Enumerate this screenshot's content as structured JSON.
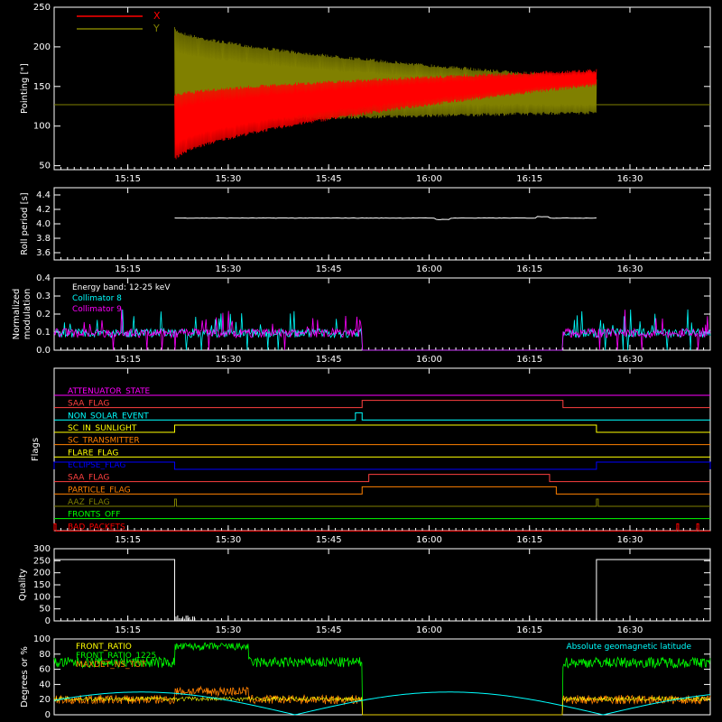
{
  "time_ticks": [
    "15:15",
    "15:30",
    "15:45",
    "16:00",
    "16:15",
    "16:30"
  ],
  "colors": {
    "axis": "#ffffff",
    "x_series": "#ff0000",
    "y_series": "#808000",
    "collimator8": "#00ffff",
    "collimator9": "#ff00ff",
    "front_ratio": "#ffff00",
    "front_ratio_1225": "#00ff00",
    "maxdet": "#ff8000",
    "geomag": "#00ffff"
  },
  "chart_data": [
    {
      "id": "pointing",
      "type": "line",
      "ylabel": "Pointing [\"]",
      "ylim": [
        45,
        250
      ],
      "yticks": [
        "50",
        "100",
        "150",
        "200",
        "250"
      ],
      "x_range": [
        "15:04",
        "16:42"
      ],
      "series": [
        {
          "name": "X",
          "color": "#ff0000",
          "baseline": 127,
          "active_window": [
            "15:22",
            "16:25"
          ],
          "envelope_low_start": 55,
          "envelope_high_start": 140,
          "envelope_low_end": 150,
          "envelope_high_end": 172
        },
        {
          "name": "Y",
          "color": "#808000",
          "baseline": 127,
          "active_window": [
            "15:22",
            "16:25"
          ],
          "envelope_low_start": 100,
          "envelope_high_start": 225,
          "envelope_low_end": 115,
          "envelope_high_end": 162
        }
      ]
    },
    {
      "id": "roll",
      "type": "line",
      "ylabel": "Roll period [s]",
      "ylim": [
        3.5,
        4.5
      ],
      "yticks": [
        "3.6",
        "3.8",
        "4.0",
        "4.2",
        "4.4"
      ],
      "series": [
        {
          "name": "",
          "value": 4.08
        }
      ]
    },
    {
      "id": "modulation",
      "type": "line",
      "ylabel": "Normalized modulation",
      "ylim": [
        0,
        0.4
      ],
      "yticks": [
        "0.0",
        "0.1",
        "0.2",
        "0.3",
        "0.4"
      ],
      "legend": [
        "Energy band: 12-25 keV",
        "Collimator 8",
        "Collimator 9"
      ],
      "gap_window": [
        "15:50",
        "16:20"
      ]
    },
    {
      "id": "flags",
      "type": "line",
      "ylabel": "Flags",
      "flags": [
        {
          "name": "ATTENUATOR_STATE",
          "color": "#ff00ff",
          "highs": []
        },
        {
          "name": "SAA_FLAG",
          "color": "#ff4040",
          "highs": [
            [
              "15:50",
              "16:20"
            ]
          ]
        },
        {
          "name": "NON_SOLAR_EVENT",
          "color": "#00ffff",
          "highs": [
            [
              "15:49",
              "15:50"
            ]
          ]
        },
        {
          "name": "SC_IN_SUNLIGHT",
          "color": "#ffff00",
          "highs": [
            [
              "15:22",
              "16:25"
            ]
          ]
        },
        {
          "name": "SC_TRANSMITTER",
          "color": "#ff8000",
          "highs": []
        },
        {
          "name": "FLARE_FLAG",
          "color": "#ffff00",
          "highs": []
        },
        {
          "name": "ECLIPSE_FLAG",
          "color": "#0000ff",
          "highs": [
            [
              "15:04",
              "15:22"
            ],
            [
              "16:25",
              "16:42"
            ]
          ]
        },
        {
          "name": "SAA_FLAG",
          "color": "#ff4040",
          "highs": [
            [
              "15:51",
              "16:18"
            ]
          ]
        },
        {
          "name": "PARTICLE_FLAG",
          "color": "#ff8000",
          "highs": [
            [
              "15:50",
              "16:19"
            ]
          ]
        },
        {
          "name": "AAZ_FLAG",
          "color": "#808000",
          "highs": [
            [
              "15:22",
              "15:22"
            ],
            [
              "16:25",
              "16:25"
            ]
          ]
        },
        {
          "name": "FRONTS_OFF",
          "color": "#00ff00",
          "highs": []
        },
        {
          "name": "BAD_PACKETS",
          "color": "#ff0000",
          "highs": [
            [
              "15:04",
              "15:04"
            ],
            [
              "16:37",
              "16:37"
            ],
            [
              "16:40",
              "16:40"
            ]
          ]
        }
      ]
    },
    {
      "id": "quality",
      "type": "line",
      "ylabel": "Quality",
      "ylim": [
        0,
        300
      ],
      "yticks": [
        "0",
        "50",
        "100",
        "150",
        "200",
        "250",
        "300"
      ],
      "series": [
        {
          "name": "",
          "high_value": 255,
          "low_value": 0,
          "high_windows": [
            [
              "15:04",
              "15:22"
            ],
            [
              "16:25",
              "16:42"
            ]
          ]
        }
      ]
    },
    {
      "id": "ratios",
      "type": "line",
      "ylabel": "Degrees or %",
      "ylim": [
        0,
        100
      ],
      "yticks": [
        "0",
        "20",
        "40",
        "60",
        "80",
        "100"
      ],
      "legend": [
        "FRONT_RATIO",
        "FRONT_RATIO_1225",
        "MAXDET_NS_TOT"
      ],
      "annotation": "Absolute geomagnetic latitude"
    }
  ]
}
